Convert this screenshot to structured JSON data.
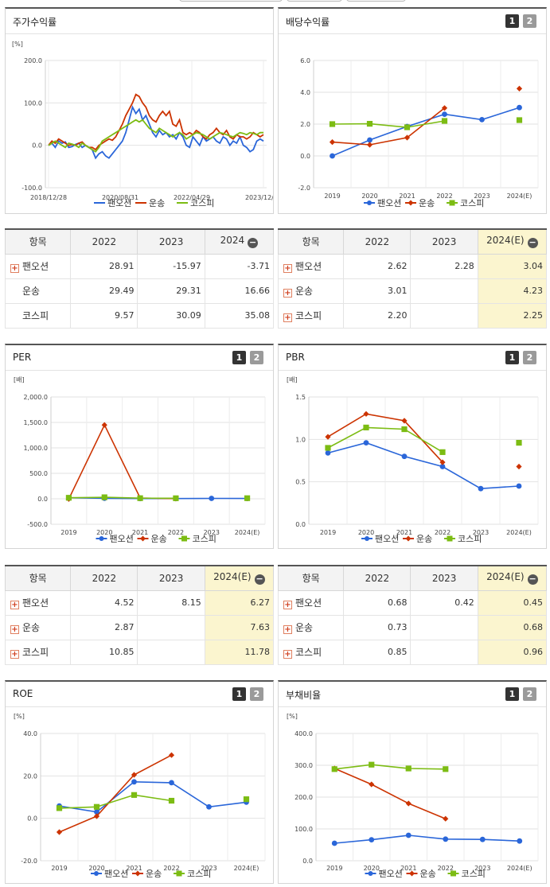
{
  "colors": {
    "pan": "#2a66d9",
    "tr": "#cc3300",
    "ks": "#7cbc13"
  },
  "paging": {
    "p1": "1",
    "p2": "2"
  },
  "legend": {
    "pan": "팬오션",
    "tr": "운송",
    "ks": "코스피"
  },
  "tables": {
    "price": {
      "header": [
        "항목",
        "2022",
        "2023",
        "2024"
      ],
      "rows": [
        {
          "name": "팬오션",
          "plus": true,
          "values": [
            "28.91",
            "-15.97",
            "-3.71"
          ]
        },
        {
          "name": "운송",
          "plus": false,
          "values": [
            "29.49",
            "29.31",
            "16.66"
          ]
        },
        {
          "name": "코스피",
          "plus": false,
          "values": [
            "9.57",
            "30.09",
            "35.08"
          ]
        }
      ]
    },
    "dividend": {
      "header": [
        "항목",
        "2022",
        "2023",
        "2024(E)"
      ],
      "rows": [
        {
          "name": "팬오션",
          "plus": true,
          "values": [
            "2.62",
            "2.28",
            "3.04"
          ]
        },
        {
          "name": "운송",
          "plus": true,
          "values": [
            "3.01",
            "",
            "4.23"
          ]
        },
        {
          "name": "코스피",
          "plus": true,
          "values": [
            "2.20",
            "",
            "2.25"
          ]
        }
      ]
    },
    "per": {
      "header": [
        "항목",
        "2022",
        "2023",
        "2024(E)"
      ],
      "rows": [
        {
          "name": "팬오션",
          "plus": true,
          "values": [
            "4.52",
            "8.15",
            "6.27"
          ]
        },
        {
          "name": "운송",
          "plus": true,
          "values": [
            "2.87",
            "",
            "7.63"
          ]
        },
        {
          "name": "코스피",
          "plus": true,
          "values": [
            "10.85",
            "",
            "11.78"
          ]
        }
      ]
    },
    "pbr": {
      "header": [
        "항목",
        "2022",
        "2023",
        "2024(E)"
      ],
      "rows": [
        {
          "name": "팬오션",
          "plus": true,
          "values": [
            "0.68",
            "0.42",
            "0.45"
          ]
        },
        {
          "name": "운송",
          "plus": true,
          "values": [
            "0.73",
            "",
            "0.68"
          ]
        },
        {
          "name": "코스피",
          "plus": true,
          "values": [
            "0.85",
            "",
            "0.96"
          ]
        }
      ]
    }
  },
  "chart_data": [
    {
      "id": "price",
      "type": "line",
      "title": "주가수익률",
      "unit": "[%]",
      "yticks": [
        "200.0",
        "100.0",
        "0.0",
        "-100.0"
      ],
      "ylim": [
        -100,
        200
      ],
      "xticks": [
        "2018/12/28",
        "2020/08/31",
        "2022/04/29",
        "2023/12/28"
      ],
      "n": 65,
      "grid": true,
      "legend": "bottom",
      "series": [
        {
          "key": "pan",
          "name": "팬오션",
          "values": [
            0,
            5,
            -5,
            10,
            5,
            8,
            -5,
            -3,
            2,
            5,
            -5,
            0,
            -5,
            -10,
            -30,
            -20,
            -15,
            -25,
            -30,
            -20,
            -10,
            0,
            10,
            30,
            60,
            90,
            75,
            85,
            60,
            70,
            50,
            30,
            20,
            35,
            25,
            30,
            20,
            25,
            15,
            30,
            20,
            0,
            -5,
            20,
            10,
            0,
            20,
            10,
            15,
            20,
            10,
            5,
            20,
            15,
            0,
            10,
            5,
            20,
            0,
            -5,
            -15,
            -10,
            10,
            15,
            10
          ]
        },
        {
          "key": "tr",
          "name": "운송",
          "values": [
            0,
            10,
            5,
            15,
            10,
            5,
            0,
            2,
            0,
            5,
            8,
            0,
            -5,
            -5,
            -10,
            0,
            5,
            10,
            15,
            12,
            20,
            35,
            50,
            70,
            85,
            100,
            120,
            115,
            100,
            90,
            70,
            60,
            55,
            70,
            80,
            70,
            80,
            50,
            45,
            60,
            30,
            25,
            30,
            25,
            35,
            30,
            20,
            15,
            25,
            30,
            40,
            30,
            25,
            35,
            20,
            15,
            25,
            20,
            20,
            15,
            20,
            30,
            25,
            20,
            25
          ]
        },
        {
          "key": "ks",
          "name": "코스피",
          "values": [
            0,
            5,
            10,
            5,
            0,
            -5,
            5,
            3,
            0,
            -5,
            5,
            0,
            -5,
            -10,
            -15,
            -5,
            10,
            15,
            20,
            25,
            30,
            35,
            40,
            45,
            50,
            55,
            60,
            55,
            60,
            50,
            40,
            35,
            30,
            40,
            35,
            30,
            25,
            20,
            25,
            30,
            25,
            15,
            20,
            25,
            30,
            28,
            25,
            20,
            15,
            20,
            25,
            30,
            28,
            25,
            22,
            20,
            25,
            30,
            28,
            25,
            30,
            28,
            25,
            30,
            30
          ]
        }
      ]
    },
    {
      "id": "dividend",
      "type": "line",
      "title": "배당수익률",
      "unit": "",
      "yticks": [
        "6.0",
        "4.0",
        "2.0",
        "0.0",
        "-2.0"
      ],
      "ylim": [
        -2,
        6
      ],
      "categories": [
        "2019",
        "2020",
        "2021",
        "2022",
        "2023",
        "2024(E)"
      ],
      "grid": true,
      "legend": "bottom",
      "series": [
        {
          "key": "pan",
          "name": "팬오션",
          "values": [
            0.0,
            1.0,
            1.85,
            2.62,
            2.28,
            3.04
          ],
          "lastSeparate": false
        },
        {
          "key": "tr",
          "name": "운송",
          "values": [
            0.87,
            0.7,
            1.15,
            3.01,
            null,
            4.23
          ],
          "lastSeparate": true
        },
        {
          "key": "ks",
          "name": "코스피",
          "values": [
            2.0,
            2.02,
            1.8,
            2.2,
            null,
            2.25
          ],
          "lastSeparate": true
        }
      ]
    },
    {
      "id": "per",
      "type": "line",
      "title": "PER",
      "unit": "[배]",
      "yticks": [
        "2,000.0",
        "1,500.0",
        "1,000.0",
        "500.0",
        "0.0",
        "-500.0"
      ],
      "ylim": [
        -500,
        2000
      ],
      "categories": [
        "2019",
        "2020",
        "2021",
        "2022",
        "2023",
        "2024(E)"
      ],
      "grid": true,
      "legend": "bottom",
      "series": [
        {
          "key": "pan",
          "name": "팬오션",
          "values": [
            20.0,
            10.0,
            5.0,
            4.52,
            8.15,
            6.27
          ],
          "lastSeparate": false
        },
        {
          "key": "tr",
          "name": "운송",
          "values": [
            -5.0,
            1450.0,
            15.0,
            2.87,
            null,
            7.63
          ],
          "lastSeparate": true
        },
        {
          "key": "ks",
          "name": "코스피",
          "values": [
            20.0,
            30.0,
            12.0,
            10.85,
            null,
            11.78
          ],
          "lastSeparate": true
        }
      ]
    },
    {
      "id": "pbr",
      "type": "line",
      "title": "PBR",
      "unit": "[배]",
      "yticks": [
        "1.5",
        "1.0",
        "0.5",
        "0.0"
      ],
      "ylim": [
        0,
        1.5
      ],
      "categories": [
        "2019",
        "2020",
        "2021",
        "2022",
        "2023",
        "2024(E)"
      ],
      "grid": true,
      "legend": "bottom",
      "series": [
        {
          "key": "pan",
          "name": "팬오션",
          "values": [
            0.84,
            0.96,
            0.8,
            0.68,
            0.42,
            0.45
          ],
          "lastSeparate": false
        },
        {
          "key": "tr",
          "name": "운송",
          "values": [
            1.03,
            1.3,
            1.22,
            0.73,
            null,
            0.68
          ],
          "lastSeparate": true
        },
        {
          "key": "ks",
          "name": "코스피",
          "values": [
            0.9,
            1.14,
            1.12,
            0.85,
            null,
            0.96
          ],
          "lastSeparate": true
        }
      ]
    },
    {
      "id": "roe",
      "type": "line",
      "title": "ROE",
      "unit": "[%]",
      "yticks": [
        "40.0",
        "20.0",
        "0.0",
        "-20.0"
      ],
      "ylim": [
        -20,
        40
      ],
      "categories": [
        "2019",
        "2020",
        "2021",
        "2022",
        "2023",
        "2024(E)"
      ],
      "grid": true,
      "legend": "bottom",
      "series": [
        {
          "key": "pan",
          "name": "팬오션",
          "values": [
            5.8,
            3.0,
            17.2,
            16.8,
            5.4,
            7.6
          ],
          "lastSeparate": false
        },
        {
          "key": "tr",
          "name": "운송",
          "values": [
            -6.5,
            1.0,
            20.5,
            29.8,
            null,
            null
          ],
          "lastSeparate": true
        },
        {
          "key": "ks",
          "name": "코스피",
          "values": [
            4.8,
            5.4,
            11.0,
            8.3,
            null,
            9.0
          ],
          "lastSeparate": true
        }
      ]
    },
    {
      "id": "debt",
      "type": "line",
      "title": "부채비율",
      "unit": "[%]",
      "yticks": [
        "400.0",
        "300.0",
        "200.0",
        "100.0",
        "0.0"
      ],
      "ylim": [
        0,
        400
      ],
      "categories": [
        "2019",
        "2020",
        "2021",
        "2022",
        "2023",
        "2024(E)"
      ],
      "grid": true,
      "legend": "bottom",
      "series": [
        {
          "key": "pan",
          "name": "팬오션",
          "values": [
            55,
            66,
            80,
            68,
            67,
            62
          ],
          "lastSeparate": false
        },
        {
          "key": "tr",
          "name": "운송",
          "values": [
            290,
            240,
            180,
            132,
            null,
            null
          ],
          "lastSeparate": true
        },
        {
          "key": "ks",
          "name": "코스피",
          "values": [
            288,
            302,
            290,
            288,
            null,
            null
          ],
          "lastSeparate": true
        }
      ]
    }
  ]
}
